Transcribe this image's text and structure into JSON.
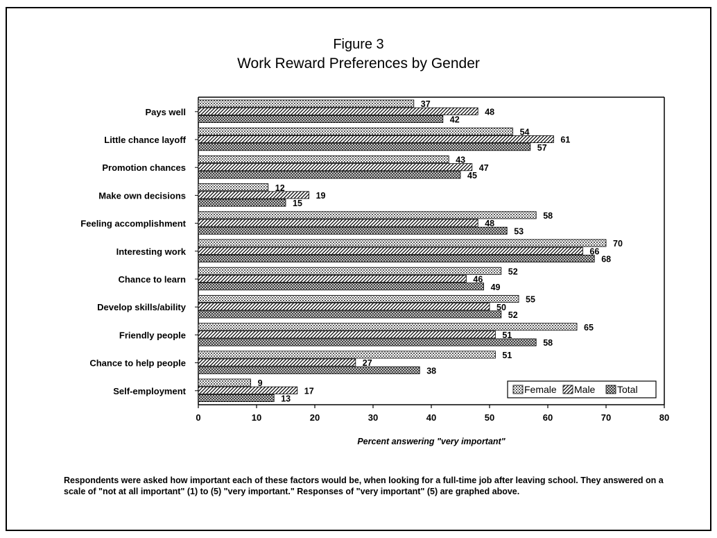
{
  "chart_data": {
    "type": "bar",
    "orientation": "horizontal",
    "title": "Figure 3",
    "subtitle": "Work Reward Preferences by Gender",
    "xlabel": "Percent answering \"very important\"",
    "ylabel": "",
    "xlim": [
      0,
      80
    ],
    "x_ticks": [
      0,
      10,
      20,
      30,
      40,
      50,
      60,
      70,
      80
    ],
    "grid": false,
    "legend_position": "bottom-right",
    "categories": [
      "Pays well",
      "Little chance layoff",
      "Promotion chances",
      "Make own decisions",
      "Feeling accomplishment",
      "Interesting work",
      "Chance to learn",
      "Develop skills/ability",
      "Friendly people",
      "Chance to help people",
      "Self-employment"
    ],
    "series": [
      {
        "name": "Female",
        "values": [
          37,
          54,
          43,
          12,
          58,
          70,
          52,
          55,
          65,
          51,
          9
        ]
      },
      {
        "name": "Male",
        "values": [
          48,
          61,
          47,
          19,
          48,
          66,
          46,
          50,
          51,
          27,
          17
        ]
      },
      {
        "name": "Total",
        "values": [
          42,
          57,
          45,
          15,
          53,
          68,
          49,
          52,
          58,
          38,
          13
        ]
      }
    ]
  },
  "note": "Respondents were asked how important each of these factors would be, when looking for a full-time job after leaving school. They answered on a scale of \"not at all important\" (1) to (5) \"very important.\" Responses of \"very important\" (5) are graphed above.",
  "colors": {
    "bar_edge": "#000000",
    "background": "#ffffff"
  }
}
